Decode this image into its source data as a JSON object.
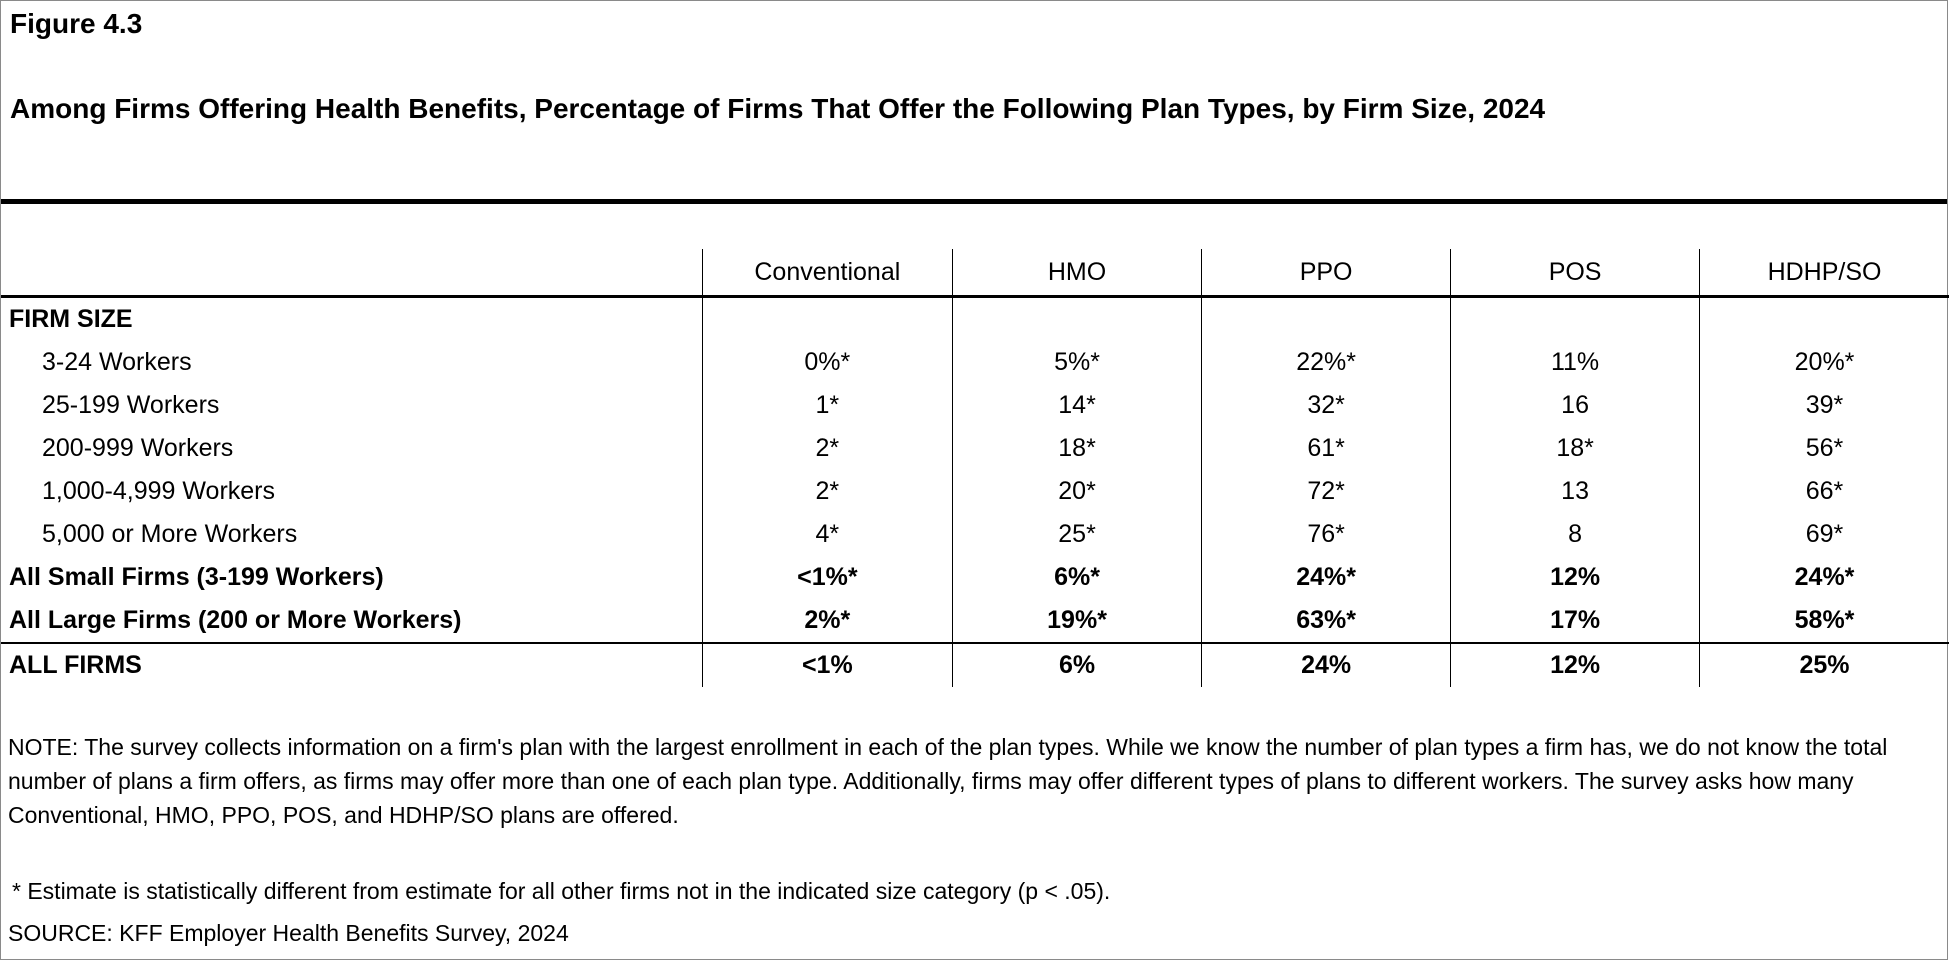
{
  "figure_label": "Figure 4.3",
  "title": "Among Firms Offering Health Benefits, Percentage of Firms That Offer the Following Plan Types, by Firm Size, 2024",
  "chart_data": {
    "type": "table",
    "columns": [
      "Conventional",
      "HMO",
      "PPO",
      "POS",
      "HDHP/SO"
    ],
    "section_label": "FIRM SIZE",
    "rows": [
      {
        "label": "3-24 Workers",
        "values": [
          "0%*",
          "5%*",
          "22%*",
          "11%",
          "20%*"
        ]
      },
      {
        "label": "25-199 Workers",
        "values": [
          "1*",
          "14*",
          "32*",
          "16",
          "39*"
        ]
      },
      {
        "label": "200-999 Workers",
        "values": [
          "2*",
          "18*",
          "61*",
          "18*",
          "56*"
        ]
      },
      {
        "label": "1,000-4,999 Workers",
        "values": [
          "2*",
          "20*",
          "72*",
          "13",
          "66*"
        ]
      },
      {
        "label": "5,000 or More Workers",
        "values": [
          "4*",
          "25*",
          "76*",
          "8",
          "69*"
        ]
      },
      {
        "label": "All Small Firms (3-199 Workers)",
        "values": [
          "<1%*",
          "6%*",
          "24%*",
          "12%",
          "24%*"
        ]
      },
      {
        "label": "All Large Firms (200 or More Workers)",
        "values": [
          "2%*",
          "19%*",
          "63%*",
          "17%",
          "58%*"
        ]
      },
      {
        "label": "ALL FIRMS",
        "values": [
          "<1%",
          "6%",
          "24%",
          "12%",
          "25%"
        ]
      }
    ]
  },
  "note": "NOTE: The survey collects information on a firm's plan with the largest enrollment in each of the plan types. While we know the number of plan types a firm has, we do not know the total number of plans a firm offers, as firms may offer more than one of each plan type. Additionally, firms may offer different types of plans to different workers. The survey asks how many Conventional, HMO, PPO, POS, and HDHP/SO plans are offered.",
  "significance_note": "* Estimate is statistically different from estimate for all other firms not in the indicated size category (p < .05).",
  "source": "SOURCE: KFF Employer Health Benefits Survey, 2024"
}
